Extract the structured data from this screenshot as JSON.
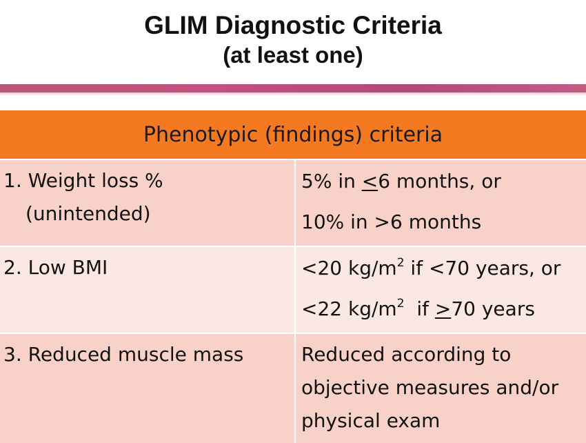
{
  "header": {
    "title": "GLIM Diagnostic Criteria",
    "subtitle": "(at least one)"
  },
  "table": {
    "heading": "Phenotypic (findings) criteria",
    "rows": [
      {
        "criterion_line1": "1. Weight loss %",
        "criterion_line2": "(unintended)",
        "threshold_line1_pre": "5% in ",
        "threshold_line1_sym": "<",
        "threshold_line1_post": "6 months, or",
        "threshold_line2": "10% in >6 months"
      },
      {
        "criterion_line1": "2. Low BMI",
        "threshold_line1_pre": "<20 kg/m",
        "threshold_line1_sup": "2",
        "threshold_line1_post": " if <70 years, or",
        "threshold_line2_pre": "<22 kg/m",
        "threshold_line2_sup": "2",
        "threshold_line2_mid": "  if ",
        "threshold_line2_sym": ">",
        "threshold_line2_post": "70 years"
      },
      {
        "criterion_line1": "3. Reduced muscle mass",
        "threshold_line1": "Reduced according to",
        "threshold_line2": "objective measures and/or",
        "threshold_line3": "physical exam"
      }
    ]
  },
  "colors": {
    "header_band": "#f47920",
    "accent_band": "#b8577c",
    "row_dark": "#f8d1c9",
    "row_light": "#fbe8e3"
  }
}
